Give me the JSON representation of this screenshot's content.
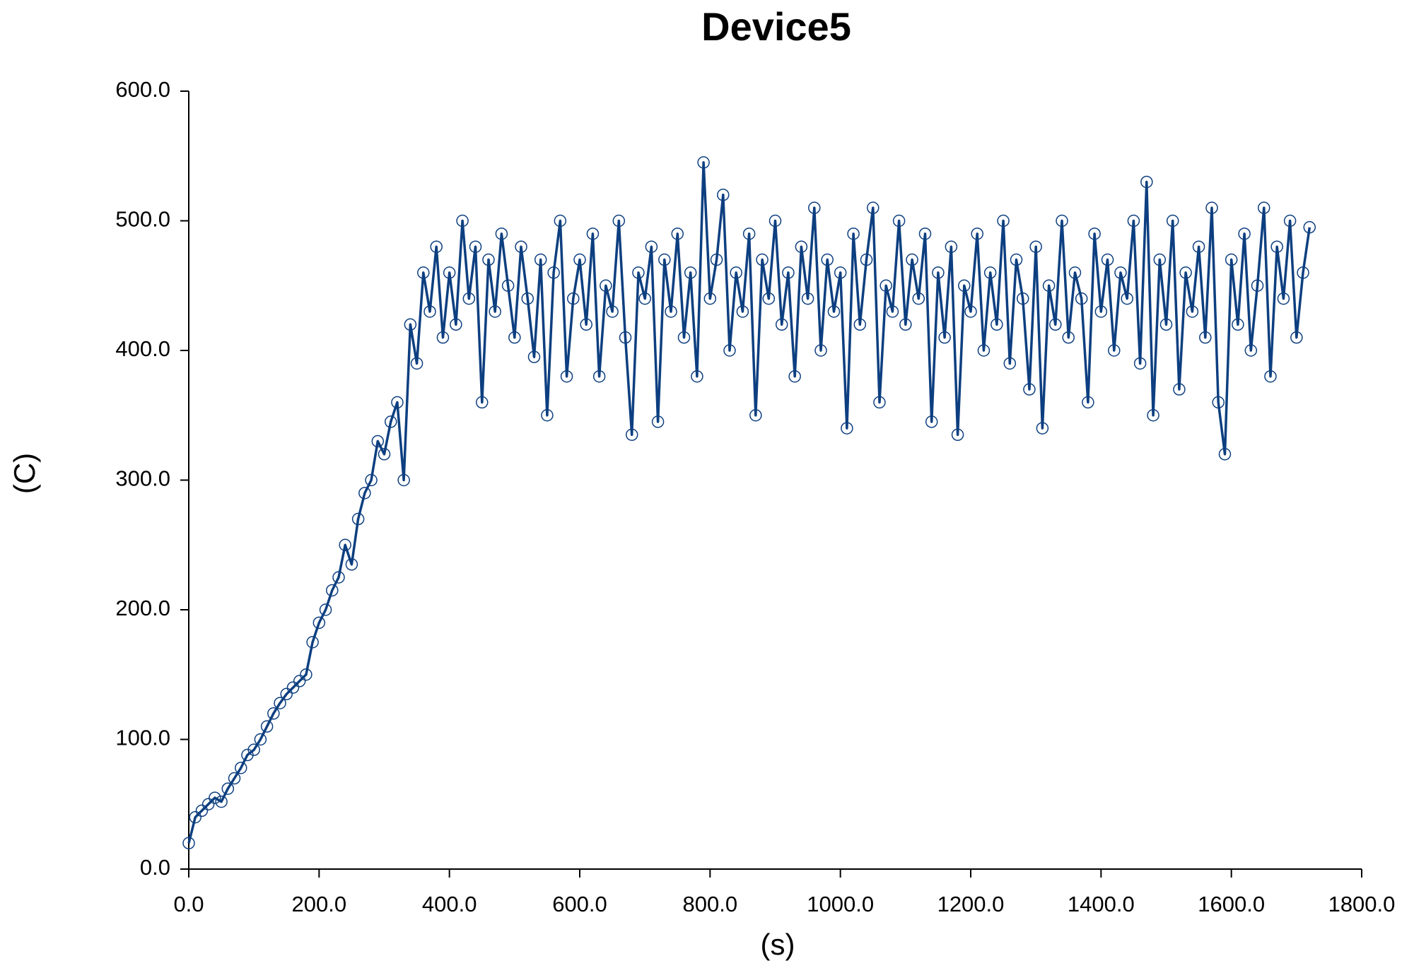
{
  "chart_data": {
    "type": "line",
    "title": "Device5",
    "xlabel": "(s)",
    "ylabel": "(C)",
    "xlim": [
      0,
      1800
    ],
    "ylim": [
      0,
      600
    ],
    "xticks": [
      {
        "value": 0,
        "label": "0.0"
      },
      {
        "value": 200,
        "label": "200.0"
      },
      {
        "value": 400,
        "label": "400.0"
      },
      {
        "value": 600,
        "label": "600.0"
      },
      {
        "value": 800,
        "label": "800.0"
      },
      {
        "value": 1000,
        "label": "1000.0"
      },
      {
        "value": 1200,
        "label": "1200.0"
      },
      {
        "value": 1400,
        "label": "1400.0"
      },
      {
        "value": 1600,
        "label": "1600.0"
      },
      {
        "value": 1800,
        "label": "1800.0"
      }
    ],
    "yticks": [
      {
        "value": 0,
        "label": "0.0"
      },
      {
        "value": 100,
        "label": "100.0"
      },
      {
        "value": 200,
        "label": "200.0"
      },
      {
        "value": 300,
        "label": "300.0"
      },
      {
        "value": 400,
        "label": "400.0"
      },
      {
        "value": 500,
        "label": "500.0"
      },
      {
        "value": 600,
        "label": "600.0"
      }
    ],
    "grid": false,
    "x": [
      0,
      10,
      20,
      30,
      40,
      50,
      60,
      70,
      80,
      90,
      100,
      110,
      120,
      130,
      140,
      150,
      160,
      170,
      180,
      190,
      200,
      210,
      220,
      230,
      240,
      250,
      260,
      270,
      280,
      290,
      300,
      310,
      320,
      330,
      340,
      350,
      360,
      370,
      380,
      390,
      400,
      410,
      420,
      430,
      440,
      450,
      460,
      470,
      480,
      490,
      500,
      510,
      520,
      530,
      540,
      550,
      560,
      570,
      580,
      590,
      600,
      610,
      620,
      630,
      640,
      650,
      660,
      670,
      680,
      690,
      700,
      710,
      720,
      730,
      740,
      750,
      760,
      770,
      780,
      790,
      800,
      810,
      820,
      830,
      840,
      850,
      860,
      870,
      880,
      890,
      900,
      910,
      920,
      930,
      940,
      950,
      960,
      970,
      980,
      990,
      1000,
      1010,
      1020,
      1030,
      1040,
      1050,
      1060,
      1070,
      1080,
      1090,
      1100,
      1110,
      1120,
      1130,
      1140,
      1150,
      1160,
      1170,
      1180,
      1190,
      1200,
      1210,
      1220,
      1230,
      1240,
      1250,
      1260,
      1270,
      1280,
      1290,
      1300,
      1310,
      1320,
      1330,
      1340,
      1350,
      1360,
      1370,
      1380,
      1390,
      1400,
      1410,
      1420,
      1430,
      1440,
      1450,
      1460,
      1470,
      1480,
      1490,
      1500,
      1510,
      1520,
      1530,
      1540,
      1550,
      1560,
      1570,
      1580,
      1590,
      1600,
      1610,
      1620,
      1630,
      1640,
      1650,
      1660,
      1670,
      1680,
      1690,
      1700,
      1710,
      1720
    ],
    "series": [
      {
        "color": "#0d3f80",
        "values": [
          20,
          40,
          45,
          50,
          55,
          52,
          62,
          70,
          78,
          88,
          92,
          100,
          110,
          120,
          128,
          135,
          140,
          145,
          150,
          175,
          190,
          200,
          215,
          225,
          250,
          235,
          270,
          290,
          300,
          330,
          320,
          345,
          360,
          300,
          420,
          390,
          460,
          430,
          480,
          410,
          460,
          420,
          500,
          440,
          480,
          360,
          470,
          430,
          490,
          450,
          410,
          480,
          440,
          395,
          470,
          350,
          460,
          500,
          380,
          440,
          470,
          420,
          490,
          380,
          450,
          430,
          500,
          410,
          335,
          460,
          440,
          480,
          345,
          470,
          430,
          490,
          410,
          460,
          380,
          545,
          440,
          470,
          520,
          400,
          460,
          430,
          490,
          350,
          470,
          440,
          500,
          420,
          460,
          380,
          480,
          440,
          510,
          400,
          470,
          430,
          460,
          340,
          490,
          420,
          470,
          510,
          360,
          450,
          430,
          500,
          420,
          470,
          440,
          490,
          345,
          460,
          410,
          480,
          335,
          450,
          430,
          490,
          400,
          460,
          420,
          500,
          390,
          470,
          440,
          370,
          480,
          340,
          450,
          420,
          500,
          410,
          460,
          440,
          360,
          490,
          430,
          470,
          400,
          460,
          440,
          500,
          390,
          530,
          350,
          470,
          420,
          500,
          370,
          460,
          430,
          480,
          410,
          510,
          360,
          320,
          470,
          420,
          490,
          400,
          450,
          510,
          380,
          480,
          440,
          500,
          410,
          460,
          495
        ]
      }
    ]
  }
}
